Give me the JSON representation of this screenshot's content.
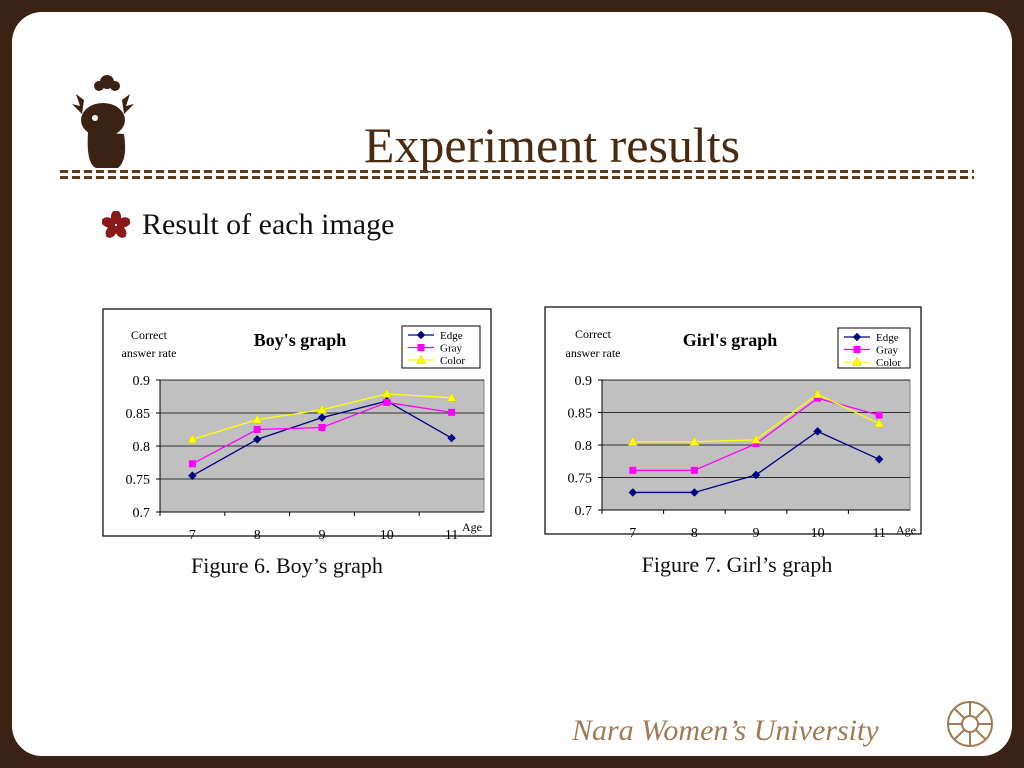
{
  "slide": {
    "title": "Experiment results",
    "bullet": "Result of each image",
    "footer": "Nara Women’s University",
    "colors": {
      "frame": "#3b2212",
      "title": "#4a2a10",
      "footer": "#a07a52",
      "bullet_icon": "#8a1a1a"
    },
    "icons": {
      "logo": "deer-mascot-icon",
      "bullet": "sakura-flower-icon",
      "seal": "university-seal-icon"
    }
  },
  "chart_data": [
    {
      "type": "line",
      "title": "Boy's graph",
      "ylabel": "Correct answer rate",
      "ylabel_lines": [
        "Correct",
        "answer rate"
      ],
      "xlabel": "Age",
      "categories": [
        "7",
        "8",
        "9",
        "10",
        "11"
      ],
      "ylim": [
        0.7,
        0.9
      ],
      "yticks": [
        0.7,
        0.75,
        0.8,
        0.85,
        0.9
      ],
      "ytick_labels": [
        "0.7",
        "0.75",
        "0.8",
        "0.85",
        "0.9"
      ],
      "grid": true,
      "legend": "top-right",
      "series": [
        {
          "name": "Edge",
          "color": "#000080",
          "marker": "diamond",
          "values": [
            0.755,
            0.81,
            0.843,
            0.868,
            0.812
          ]
        },
        {
          "name": "Gray",
          "color": "#ff00ff",
          "marker": "square",
          "values": [
            0.773,
            0.825,
            0.828,
            0.866,
            0.851
          ]
        },
        {
          "name": "Color",
          "color": "#ffff00",
          "marker": "triangle",
          "values": [
            0.81,
            0.84,
            0.855,
            0.879,
            0.873
          ]
        }
      ],
      "caption": "Figure 6. Boy’s graph"
    },
    {
      "type": "line",
      "title": "Girl's graph",
      "ylabel": "Correct answer rate",
      "ylabel_lines": [
        "Correct",
        "answer rate"
      ],
      "xlabel": "Age",
      "categories": [
        "7",
        "8",
        "9",
        "10",
        "11"
      ],
      "ylim": [
        0.7,
        0.9
      ],
      "yticks": [
        0.7,
        0.75,
        0.8,
        0.85,
        0.9
      ],
      "ytick_labels": [
        "0.7",
        "0.75",
        "0.8",
        "0.85",
        "0.9"
      ],
      "grid": true,
      "legend": "top-right",
      "series": [
        {
          "name": "Edge",
          "color": "#000080",
          "marker": "diamond",
          "values": [
            0.727,
            0.727,
            0.754,
            0.821,
            0.778
          ]
        },
        {
          "name": "Gray",
          "color": "#ff00ff",
          "marker": "square",
          "values": [
            0.761,
            0.761,
            0.802,
            0.872,
            0.846
          ]
        },
        {
          "name": "Color",
          "color": "#ffff00",
          "marker": "triangle",
          "values": [
            0.805,
            0.805,
            0.808,
            0.878,
            0.833
          ]
        }
      ],
      "caption": "Figure 7. Girl’s graph"
    }
  ]
}
